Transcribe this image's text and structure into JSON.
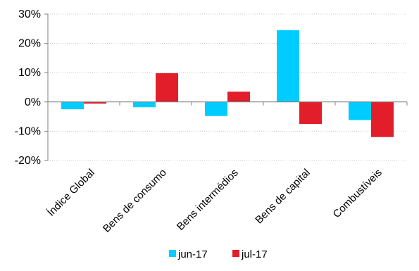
{
  "chart_data": {
    "type": "bar",
    "title": "",
    "xlabel": "",
    "ylabel": "",
    "categories": [
      "Índice Global",
      "Bens de consumo",
      "Bens intermédios",
      "Bens de capital",
      "Combustíveis"
    ],
    "series": [
      {
        "name": "jun-17",
        "color": "#00CCFF",
        "values": [
          -2.5,
          -1.8,
          -4.8,
          24.5,
          -6.2
        ]
      },
      {
        "name": "jul-17",
        "color": "#E21E2B",
        "values": [
          -0.6,
          9.8,
          3.5,
          -7.5,
          -12.0
        ]
      }
    ],
    "ylim": [
      -20,
      30
    ],
    "yticks": [
      -20,
      -10,
      0,
      10,
      20,
      30
    ],
    "ytick_labels": [
      "-20%",
      "-10%",
      "0%",
      "10%",
      "20%",
      "30%"
    ],
    "grid": true,
    "gridline_color": "#C8C8C8",
    "axis_color": "#808080",
    "legend_position": "bottom"
  }
}
